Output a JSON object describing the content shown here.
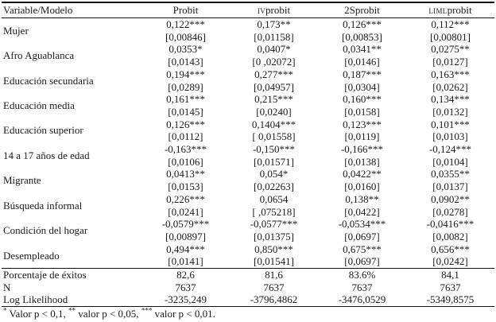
{
  "page": {
    "background": "#fefefe",
    "text_color": "#1c1c1c",
    "rule_color": "#111111"
  },
  "table": {
    "header": {
      "col0": "Variable/Modelo",
      "cols": [
        {
          "sc": "",
          "rest": "Probit"
        },
        {
          "sc": "iv",
          "rest": "probit"
        },
        {
          "sc": "",
          "rest": "2Sprobit"
        },
        {
          "sc": "liml",
          "rest": "probit"
        }
      ]
    },
    "rows": [
      {
        "label": "Mujer",
        "coef": [
          "0,122***",
          "0,173**",
          "0,126***",
          "0,112***"
        ],
        "se": [
          "[0,00846]",
          "[0,01158]",
          "[0,00853]",
          "[0,00801]"
        ]
      },
      {
        "label": "Afro Aguablanca",
        "coef": [
          "0,0353*",
          "0,0407*",
          "0,0341**",
          "0,0275**"
        ],
        "se": [
          "[0,0143]",
          "[0 ,02072]",
          "[0,0146]",
          "[0,0127]"
        ]
      },
      {
        "label": "Educación secundaria",
        "coef": [
          "0,194***",
          "0,277***",
          "0,187***",
          "0,163***"
        ],
        "se": [
          "[0,0289]",
          "[0,04957]",
          "[0,0304]",
          "[0,0262]"
        ]
      },
      {
        "label": "Educación media",
        "coef": [
          "0,161***",
          "0,215***",
          "0,160***",
          "0,134***"
        ],
        "se": [
          "[0,0145]",
          "[0,0240]",
          "[0,0158]",
          "[0,0132]"
        ]
      },
      {
        "label": "Educación superior",
        "coef": [
          "0,126***",
          "0,1404***",
          "0,123***",
          "0,101***"
        ],
        "se": [
          "[0,0112]",
          "[ 0,01558]",
          "[0,0119]",
          "[0,0103]"
        ]
      },
      {
        "label": "14 a 17 años de edad",
        "coef": [
          "-0,163***",
          "-0,150***",
          "-0,166***",
          "-0,124***"
        ],
        "se": [
          "[0,0106]",
          "[0,01571]",
          "[0,0138]",
          "[0,0104]"
        ]
      },
      {
        "label": "Migrante",
        "coef": [
          "0,0413**",
          "0,054*",
          "0,0422**",
          "0,0355**"
        ],
        "se": [
          "[0,0153]",
          "[0,02263]",
          "[0,0160]",
          "[0,0137]"
        ]
      },
      {
        "label": "Búsqueda informal",
        "coef": [
          "0,226***",
          "0,0654",
          "0,138**",
          "0,0902**"
        ],
        "se": [
          "[0,0241]",
          "[ ,075218]",
          "[0,0422]",
          "[0,0278]"
        ]
      },
      {
        "label": "Condición del hogar",
        "coef": [
          "-0,0579***",
          "-0,0577***",
          "-0,0534***",
          "-0,0416***"
        ],
        "se": [
          "[0,00897]",
          "[0,01375]",
          "[0,0697]",
          "[0,0082]"
        ]
      },
      {
        "label": "Desempleado",
        "coef": [
          "0,494***",
          "0,850***",
          "0,675***",
          "0,656***"
        ],
        "se": [
          "[0,0141]",
          "[0,01541]",
          "[0,0697]",
          "[0,0242]"
        ]
      }
    ],
    "summary": [
      {
        "label": "Porcentaje de éxitos",
        "values": [
          "82,6",
          "81,6",
          "83.6%",
          "84,1"
        ]
      },
      {
        "label": "N",
        "values": [
          "7637",
          "7637",
          "7637",
          "7637"
        ]
      },
      {
        "label": "Log Likelihood",
        "values": [
          "-3235,249",
          "-3796,4862",
          "-3476,0529",
          "-5349,8575"
        ]
      }
    ],
    "footnote": {
      "parts": [
        {
          "sup": "*",
          "text": " Valor p < 0,1, "
        },
        {
          "sup": "**",
          "text": " valor p < 0,05, "
        },
        {
          "sup": "***",
          "text": " valor p < 0,01."
        }
      ]
    }
  }
}
